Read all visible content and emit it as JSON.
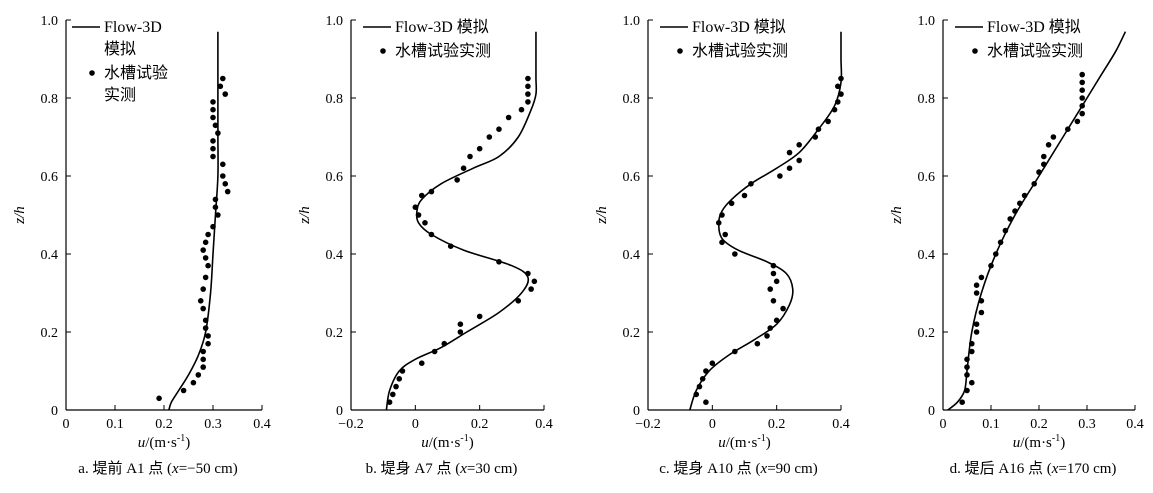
{
  "units_label": "(m·s",
  "units_exp": "-1",
  "units_close": ")",
  "chart_data": [
    {
      "type": "line",
      "xlabel_var": "u",
      "ylabel": "z/h",
      "xlim": [
        0,
        0.4
      ],
      "ylim": [
        0,
        1.0
      ],
      "xticks": [
        "0",
        "0.1",
        "0.2",
        "0.3",
        "0.4"
      ],
      "yticks": [
        "0",
        "0.2",
        "0.4",
        "0.6",
        "0.8",
        "1.0"
      ],
      "caption": {
        "prefix": "a. 堤前 A1 点 (",
        "var": "x",
        "value": "=−50 cm)"
      },
      "legend": {
        "model_lines": [
          "Flow-3D",
          "模拟"
        ],
        "obs_lines": [
          "水槽试验",
          "实测"
        ]
      },
      "series": [
        {
          "name": "Flow-3D 模拟",
          "kind": "line",
          "points": [
            [
              0.21,
              0.0
            ],
            [
              0.215,
              0.02
            ],
            [
              0.23,
              0.05
            ],
            [
              0.25,
              0.09
            ],
            [
              0.27,
              0.14
            ],
            [
              0.285,
              0.2
            ],
            [
              0.295,
              0.3
            ],
            [
              0.3,
              0.4
            ],
            [
              0.305,
              0.5
            ],
            [
              0.31,
              0.6
            ],
            [
              0.31,
              0.7
            ],
            [
              0.31,
              0.8
            ],
            [
              0.31,
              0.9
            ],
            [
              0.31,
              0.97
            ]
          ]
        },
        {
          "name": "水槽试验实测",
          "kind": "scatter",
          "points": [
            [
              0.19,
              0.03
            ],
            [
              0.24,
              0.05
            ],
            [
              0.26,
              0.07
            ],
            [
              0.27,
              0.09
            ],
            [
              0.28,
              0.11
            ],
            [
              0.28,
              0.13
            ],
            [
              0.28,
              0.15
            ],
            [
              0.29,
              0.17
            ],
            [
              0.29,
              0.19
            ],
            [
              0.285,
              0.21
            ],
            [
              0.285,
              0.23
            ],
            [
              0.28,
              0.26
            ],
            [
              0.275,
              0.28
            ],
            [
              0.28,
              0.31
            ],
            [
              0.285,
              0.34
            ],
            [
              0.29,
              0.37
            ],
            [
              0.285,
              0.39
            ],
            [
              0.28,
              0.41
            ],
            [
              0.285,
              0.43
            ],
            [
              0.29,
              0.45
            ],
            [
              0.3,
              0.47
            ],
            [
              0.31,
              0.5
            ],
            [
              0.305,
              0.52
            ],
            [
              0.305,
              0.54
            ],
            [
              0.33,
              0.56
            ],
            [
              0.325,
              0.58
            ],
            [
              0.32,
              0.6
            ],
            [
              0.32,
              0.63
            ],
            [
              0.3,
              0.65
            ],
            [
              0.3,
              0.67
            ],
            [
              0.3,
              0.69
            ],
            [
              0.31,
              0.71
            ],
            [
              0.305,
              0.73
            ],
            [
              0.3,
              0.75
            ],
            [
              0.3,
              0.77
            ],
            [
              0.3,
              0.79
            ],
            [
              0.325,
              0.81
            ],
            [
              0.315,
              0.83
            ],
            [
              0.32,
              0.85
            ]
          ]
        }
      ]
    },
    {
      "type": "line",
      "xlabel_var": "u",
      "ylabel": "z/h",
      "xlim": [
        -0.2,
        0.4
      ],
      "ylim": [
        0,
        1.0
      ],
      "xticks": [
        "−0.2",
        "0",
        "0.2",
        "0.4"
      ],
      "yticks": [
        "0",
        "0.2",
        "0.4",
        "0.6",
        "0.8",
        "1.0"
      ],
      "caption": {
        "prefix": "b. 堤身 A7 点 (",
        "var": "x",
        "value": "=30 cm)"
      },
      "legend": {
        "model_lines": [
          "Flow-3D 模拟"
        ],
        "obs_lines": [
          "水槽试验实测"
        ]
      },
      "series": [
        {
          "name": "Flow-3D 模拟",
          "kind": "line",
          "points": [
            [
              -0.09,
              0.0
            ],
            [
              -0.08,
              0.05
            ],
            [
              -0.05,
              0.1
            ],
            [
              0.0,
              0.13
            ],
            [
              0.08,
              0.16
            ],
            [
              0.16,
              0.2
            ],
            [
              0.26,
              0.25
            ],
            [
              0.33,
              0.3
            ],
            [
              0.35,
              0.34
            ],
            [
              0.3,
              0.37
            ],
            [
              0.15,
              0.41
            ],
            [
              0.05,
              0.45
            ],
            [
              0.01,
              0.48
            ],
            [
              0.005,
              0.51
            ],
            [
              0.02,
              0.54
            ],
            [
              0.08,
              0.58
            ],
            [
              0.18,
              0.62
            ],
            [
              0.26,
              0.65
            ],
            [
              0.32,
              0.7
            ],
            [
              0.36,
              0.77
            ],
            [
              0.375,
              0.81
            ],
            [
              0.375,
              0.85
            ],
            [
              0.375,
              0.9
            ],
            [
              0.375,
              0.97
            ]
          ]
        },
        {
          "name": "水槽试验实测",
          "kind": "scatter",
          "points": [
            [
              -0.08,
              0.02
            ],
            [
              -0.07,
              0.04
            ],
            [
              -0.06,
              0.06
            ],
            [
              -0.05,
              0.08
            ],
            [
              -0.04,
              0.1
            ],
            [
              0.02,
              0.12
            ],
            [
              0.06,
              0.15
            ],
            [
              0.09,
              0.17
            ],
            [
              0.14,
              0.2
            ],
            [
              0.14,
              0.22
            ],
            [
              0.2,
              0.24
            ],
            [
              0.32,
              0.28
            ],
            [
              0.36,
              0.31
            ],
            [
              0.37,
              0.33
            ],
            [
              0.35,
              0.35
            ],
            [
              0.26,
              0.38
            ],
            [
              0.11,
              0.42
            ],
            [
              0.05,
              0.45
            ],
            [
              0.03,
              0.48
            ],
            [
              0.01,
              0.5
            ],
            [
              0.0,
              0.52
            ],
            [
              0.02,
              0.55
            ],
            [
              0.05,
              0.56
            ],
            [
              0.13,
              0.59
            ],
            [
              0.15,
              0.62
            ],
            [
              0.17,
              0.65
            ],
            [
              0.2,
              0.67
            ],
            [
              0.23,
              0.7
            ],
            [
              0.26,
              0.72
            ],
            [
              0.29,
              0.75
            ],
            [
              0.33,
              0.77
            ],
            [
              0.35,
              0.79
            ],
            [
              0.35,
              0.81
            ],
            [
              0.35,
              0.83
            ],
            [
              0.35,
              0.85
            ]
          ]
        }
      ]
    },
    {
      "type": "line",
      "xlabel_var": "u",
      "ylabel": "z/h",
      "xlim": [
        -0.2,
        0.4
      ],
      "ylim": [
        0,
        1.0
      ],
      "xticks": [
        "−0.2",
        "0",
        "0.2",
        "0.4"
      ],
      "yticks": [
        "0",
        "0.2",
        "0.4",
        "0.6",
        "0.8",
        "1.0"
      ],
      "caption": {
        "prefix": "c. 堤身 A10 点 (",
        "var": "x",
        "value": "=90 cm)"
      },
      "legend": {
        "model_lines": [
          "Flow-3D 模拟"
        ],
        "obs_lines": [
          "水槽试验实测"
        ]
      },
      "series": [
        {
          "name": "Flow-3D 模拟",
          "kind": "line",
          "points": [
            [
              -0.07,
              0.0
            ],
            [
              -0.05,
              0.05
            ],
            [
              -0.01,
              0.1
            ],
            [
              0.05,
              0.14
            ],
            [
              0.13,
              0.18
            ],
            [
              0.2,
              0.22
            ],
            [
              0.24,
              0.27
            ],
            [
              0.25,
              0.31
            ],
            [
              0.23,
              0.35
            ],
            [
              0.17,
              0.38
            ],
            [
              0.08,
              0.41
            ],
            [
              0.03,
              0.44
            ],
            [
              0.02,
              0.48
            ],
            [
              0.03,
              0.51
            ],
            [
              0.06,
              0.54
            ],
            [
              0.12,
              0.58
            ],
            [
              0.2,
              0.62
            ],
            [
              0.27,
              0.66
            ],
            [
              0.33,
              0.72
            ],
            [
              0.38,
              0.78
            ],
            [
              0.4,
              0.84
            ],
            [
              0.4,
              0.9
            ],
            [
              0.4,
              0.97
            ]
          ]
        },
        {
          "name": "水槽试验实测",
          "kind": "scatter",
          "points": [
            [
              -0.02,
              0.02
            ],
            [
              -0.05,
              0.04
            ],
            [
              -0.04,
              0.06
            ],
            [
              -0.03,
              0.08
            ],
            [
              -0.02,
              0.1
            ],
            [
              0.0,
              0.12
            ],
            [
              0.07,
              0.15
            ],
            [
              0.14,
              0.17
            ],
            [
              0.17,
              0.19
            ],
            [
              0.18,
              0.21
            ],
            [
              0.2,
              0.23
            ],
            [
              0.22,
              0.26
            ],
            [
              0.19,
              0.28
            ],
            [
              0.18,
              0.31
            ],
            [
              0.2,
              0.33
            ],
            [
              0.19,
              0.35
            ],
            [
              0.19,
              0.37
            ],
            [
              0.07,
              0.4
            ],
            [
              0.03,
              0.43
            ],
            [
              0.04,
              0.45
            ],
            [
              0.02,
              0.48
            ],
            [
              0.03,
              0.5
            ],
            [
              0.06,
              0.53
            ],
            [
              0.1,
              0.55
            ],
            [
              0.12,
              0.58
            ],
            [
              0.21,
              0.6
            ],
            [
              0.24,
              0.62
            ],
            [
              0.27,
              0.64
            ],
            [
              0.24,
              0.66
            ],
            [
              0.27,
              0.68
            ],
            [
              0.32,
              0.7
            ],
            [
              0.33,
              0.72
            ],
            [
              0.36,
              0.74
            ],
            [
              0.38,
              0.77
            ],
            [
              0.39,
              0.79
            ],
            [
              0.4,
              0.81
            ],
            [
              0.39,
              0.83
            ],
            [
              0.4,
              0.85
            ]
          ]
        }
      ]
    },
    {
      "type": "line",
      "xlabel_var": "u",
      "ylabel": "z/h",
      "xlim": [
        0,
        0.4
      ],
      "ylim": [
        0,
        1.0
      ],
      "xticks": [
        "0",
        "0.1",
        "0.2",
        "0.3",
        "0.4"
      ],
      "yticks": [
        "0",
        "0.2",
        "0.4",
        "0.6",
        "0.8",
        "1.0"
      ],
      "caption": {
        "prefix": "d. 堤后 A16 点 (",
        "var": "x",
        "value": "=170 cm)"
      },
      "legend": {
        "model_lines": [
          "Flow-3D 模拟"
        ],
        "obs_lines": [
          "水槽试验实测"
        ]
      },
      "series": [
        {
          "name": "Flow-3D 模拟",
          "kind": "line",
          "points": [
            [
              0.01,
              0.0
            ],
            [
              0.03,
              0.02
            ],
            [
              0.045,
              0.05
            ],
            [
              0.05,
              0.1
            ],
            [
              0.06,
              0.2
            ],
            [
              0.08,
              0.3
            ],
            [
              0.11,
              0.4
            ],
            [
              0.15,
              0.5
            ],
            [
              0.2,
              0.6
            ],
            [
              0.25,
              0.7
            ],
            [
              0.29,
              0.78
            ],
            [
              0.33,
              0.86
            ],
            [
              0.36,
              0.92
            ],
            [
              0.38,
              0.97
            ]
          ]
        },
        {
          "name": "水槽试验实测",
          "kind": "scatter",
          "points": [
            [
              0.04,
              0.02
            ],
            [
              0.05,
              0.05
            ],
            [
              0.06,
              0.07
            ],
            [
              0.05,
              0.09
            ],
            [
              0.05,
              0.11
            ],
            [
              0.05,
              0.13
            ],
            [
              0.06,
              0.15
            ],
            [
              0.06,
              0.17
            ],
            [
              0.07,
              0.2
            ],
            [
              0.07,
              0.22
            ],
            [
              0.08,
              0.25
            ],
            [
              0.08,
              0.28
            ],
            [
              0.07,
              0.3
            ],
            [
              0.07,
              0.32
            ],
            [
              0.08,
              0.34
            ],
            [
              0.1,
              0.37
            ],
            [
              0.11,
              0.4
            ],
            [
              0.12,
              0.43
            ],
            [
              0.13,
              0.46
            ],
            [
              0.14,
              0.49
            ],
            [
              0.15,
              0.51
            ],
            [
              0.16,
              0.53
            ],
            [
              0.17,
              0.55
            ],
            [
              0.19,
              0.58
            ],
            [
              0.2,
              0.61
            ],
            [
              0.21,
              0.63
            ],
            [
              0.21,
              0.65
            ],
            [
              0.22,
              0.68
            ],
            [
              0.23,
              0.7
            ],
            [
              0.26,
              0.72
            ],
            [
              0.28,
              0.74
            ],
            [
              0.29,
              0.76
            ],
            [
              0.29,
              0.78
            ],
            [
              0.29,
              0.8
            ],
            [
              0.29,
              0.82
            ],
            [
              0.29,
              0.84
            ],
            [
              0.29,
              0.86
            ]
          ]
        }
      ]
    }
  ]
}
